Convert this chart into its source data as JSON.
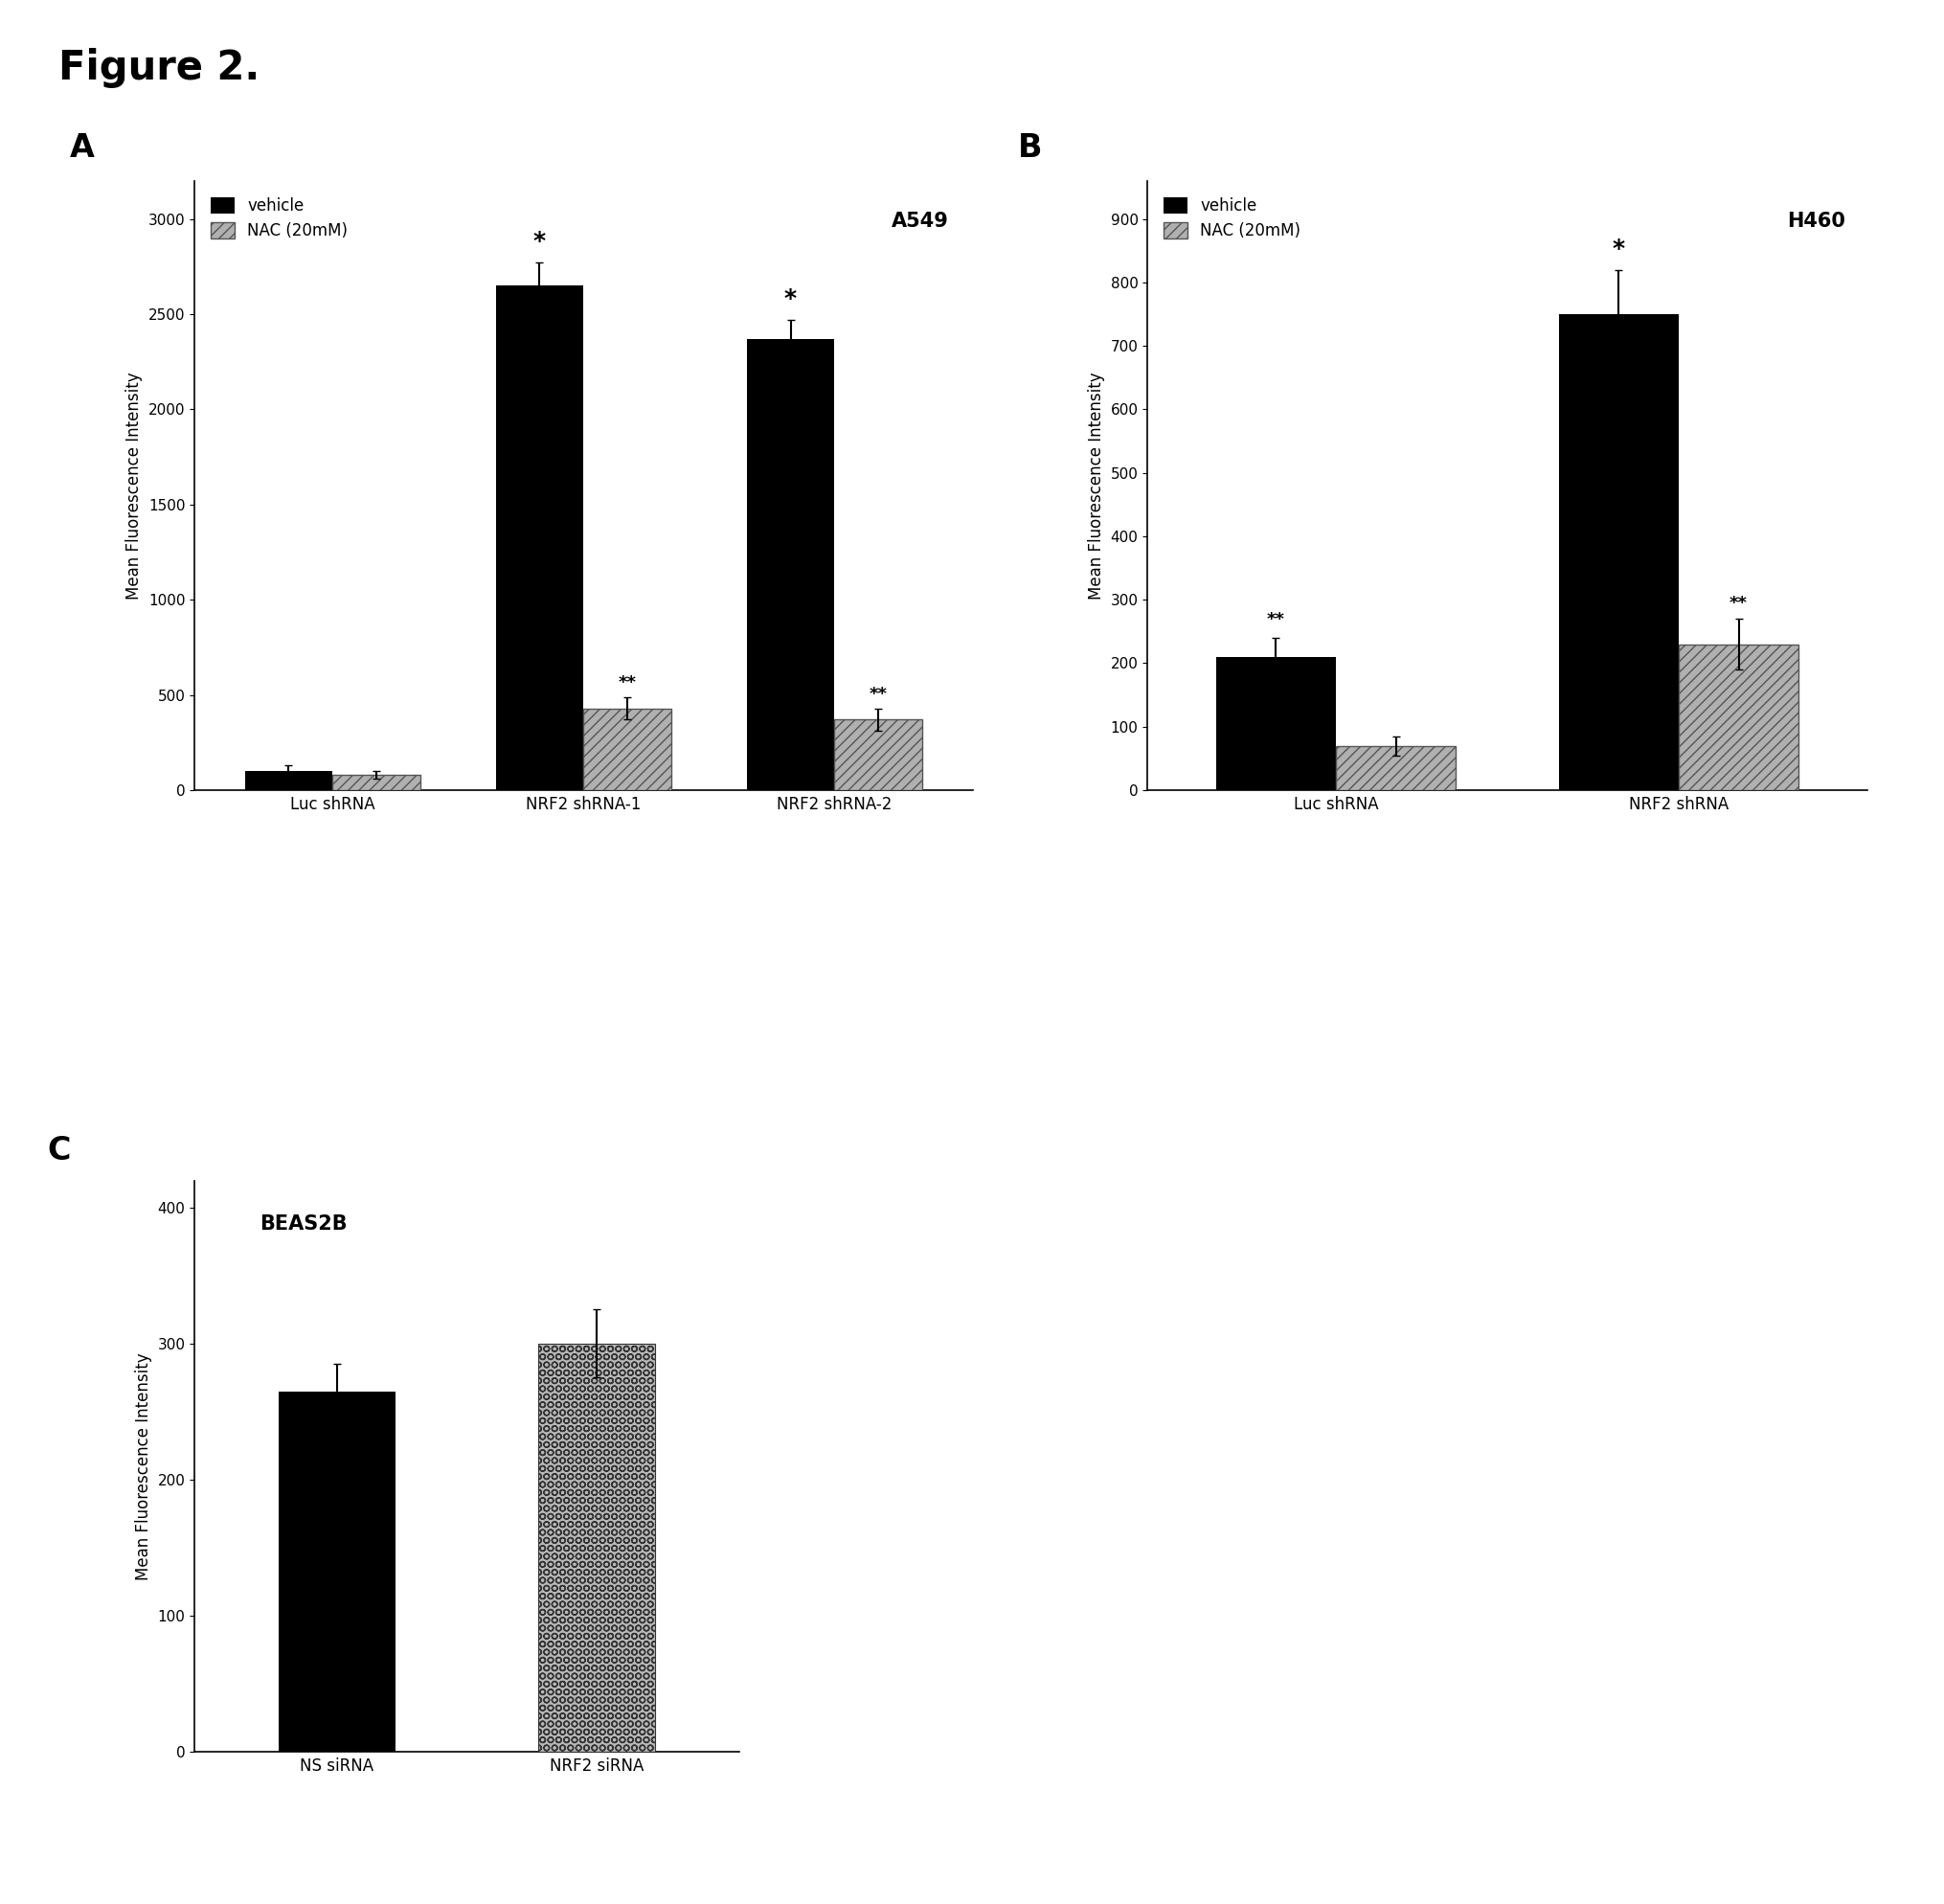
{
  "fig_title": "Figure 2.",
  "panel_A": {
    "label": "A",
    "cell_line": "A549",
    "categories": [
      "Luc shRNA",
      "NRF2 shRNA-1",
      "NRF2 shRNA-2"
    ],
    "vehicle_values": [
      100,
      2650,
      2370
    ],
    "vehicle_errors": [
      30,
      120,
      100
    ],
    "nac_values": [
      80,
      430,
      370
    ],
    "nac_errors": [
      20,
      60,
      60
    ],
    "ylim": [
      0,
      3200
    ],
    "yticks": [
      0,
      500,
      1000,
      1500,
      2000,
      2500,
      3000
    ],
    "ylabel": "Mean Fluorescence Intensity",
    "sig_vehicle": [
      "",
      "*",
      "*"
    ],
    "sig_nac": [
      "",
      "**",
      "**"
    ]
  },
  "panel_B": {
    "label": "B",
    "cell_line": "H460",
    "categories": [
      "Luc shRNA",
      "NRF2 shRNA"
    ],
    "vehicle_values": [
      210,
      750
    ],
    "vehicle_errors": [
      30,
      70
    ],
    "nac_values": [
      70,
      230
    ],
    "nac_errors": [
      15,
      40
    ],
    "ylim": [
      0,
      960
    ],
    "yticks": [
      0,
      100,
      200,
      300,
      400,
      500,
      600,
      700,
      800,
      900
    ],
    "ylabel": "Mean Fluorescence Intensity",
    "sig_vehicle": [
      "**",
      "*"
    ],
    "sig_nac": [
      "",
      "**"
    ]
  },
  "panel_C": {
    "label": "C",
    "cell_line": "BEAS2B",
    "categories": [
      "NS siRNA",
      "NRF2 siRNA"
    ],
    "values": [
      265,
      300
    ],
    "errors": [
      20,
      25
    ],
    "ylim": [
      0,
      420
    ],
    "yticks": [
      0,
      100,
      200,
      300,
      400
    ],
    "ylabel": "Mean Fluorescence Intensity"
  },
  "vehicle_color": "#000000",
  "nac_color": "#b0b0b0",
  "nac_hatch": "///",
  "bar_width": 0.35,
  "background_color": "#ffffff"
}
